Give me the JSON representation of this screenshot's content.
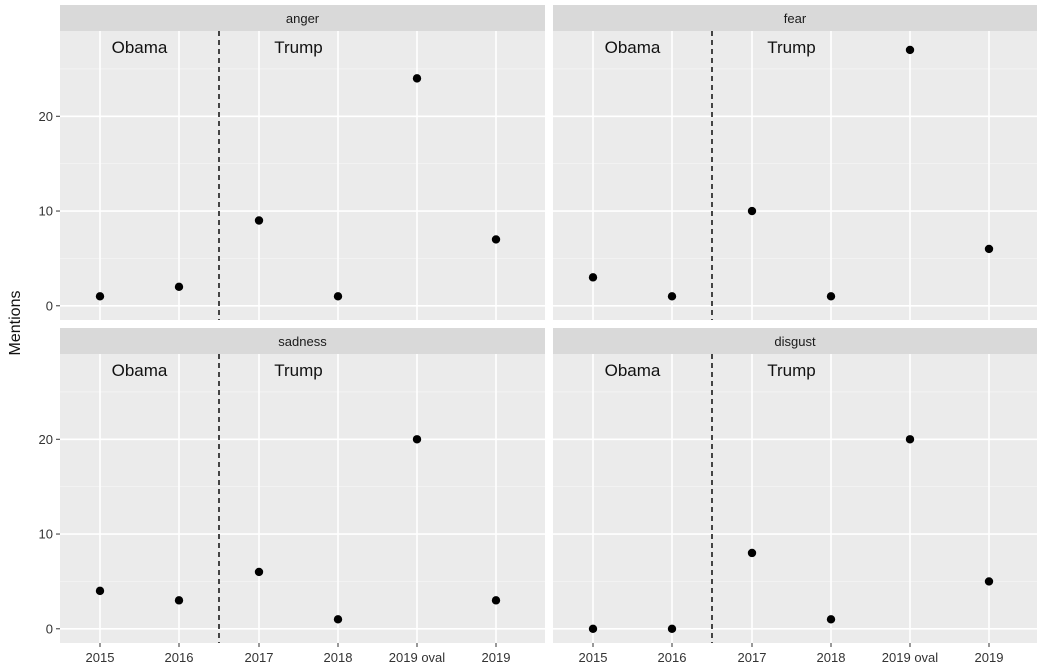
{
  "chart_data": {
    "type": "scatter",
    "ylabel": "Mentions",
    "xlabel": "",
    "categories": [
      "2015",
      "2016",
      "2017",
      "2018",
      "2019 oval",
      "2019"
    ],
    "ylim": [
      -1.5,
      29
    ],
    "yticks": [
      0,
      10,
      20
    ],
    "grid": true,
    "facet_layout": "2x2",
    "annotations": [
      {
        "text": "Obama"
      },
      {
        "text": "Trump"
      }
    ],
    "divider": "dashed vertical line between 2016 and 2017",
    "panels": [
      {
        "name": "anger",
        "values": [
          1,
          2,
          9,
          1,
          24,
          7
        ]
      },
      {
        "name": "fear",
        "values": [
          3,
          1,
          10,
          1,
          27,
          6
        ]
      },
      {
        "name": "sadness",
        "values": [
          4,
          3,
          6,
          1,
          20,
          3
        ]
      },
      {
        "name": "disgust",
        "values": [
          0,
          0,
          8,
          1,
          20,
          5
        ]
      }
    ]
  }
}
